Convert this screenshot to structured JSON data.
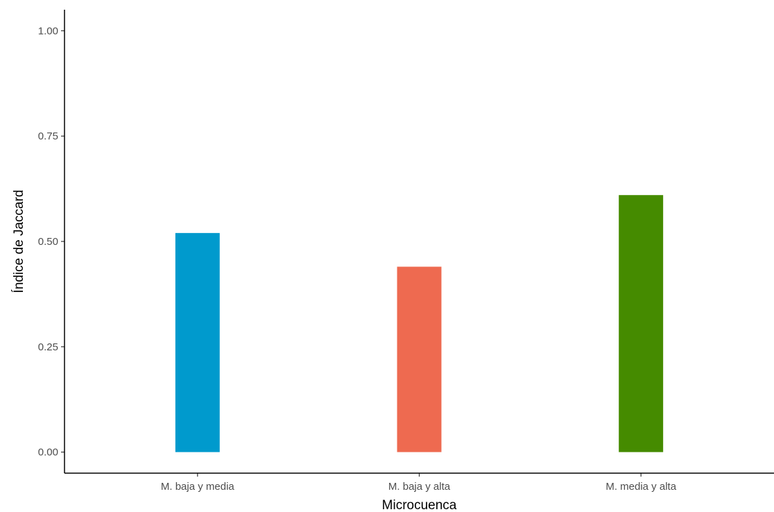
{
  "chart_data": {
    "type": "bar",
    "categories": [
      "M. baja y media",
      "M. baja y alta",
      "M. media y alta"
    ],
    "values": [
      0.52,
      0.44,
      0.61
    ],
    "colors": [
      "#009ACD",
      "#EE6A50",
      "#458B00"
    ],
    "title": "",
    "xlabel": "Microcuenca",
    "ylabel": "Índice de Jaccard",
    "ylim": [
      -0.05,
      1.05
    ],
    "yticks": [
      0.0,
      0.25,
      0.5,
      0.75,
      1.0
    ],
    "ytick_labels": [
      "0.00",
      "0.25",
      "0.50",
      "0.75",
      "1.00"
    ],
    "grid": false,
    "legend": "none"
  }
}
